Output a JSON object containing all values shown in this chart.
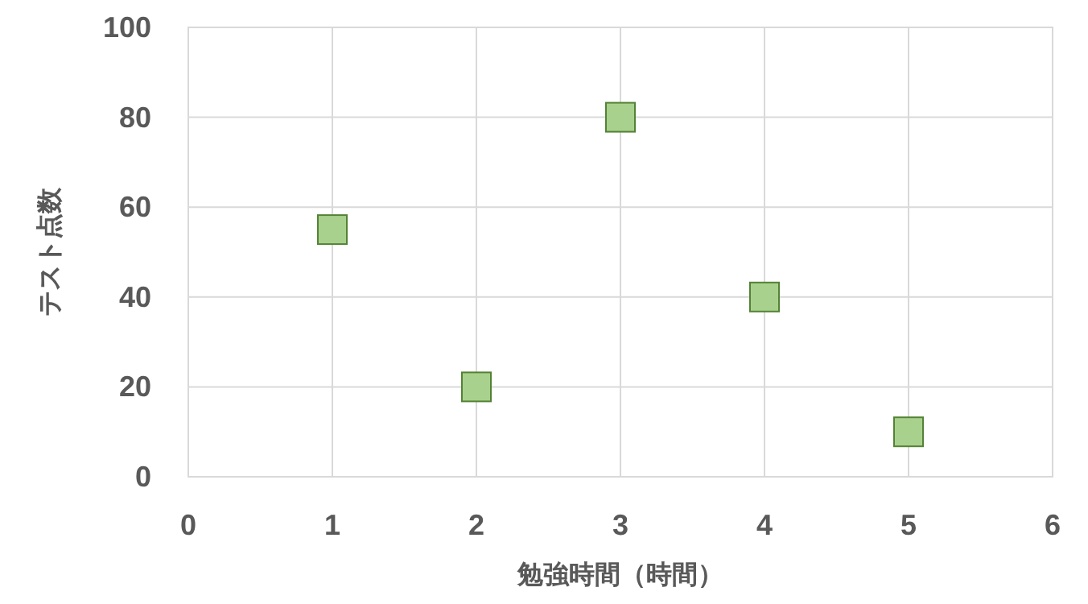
{
  "chart_data": {
    "type": "scatter",
    "xlabel": "勉強時間（時間）",
    "ylabel": "テスト点数",
    "x": [
      1,
      2,
      3,
      4,
      5
    ],
    "series": [
      {
        "type": "scatter",
        "color": "#a9d18e",
        "values": [
          55,
          20,
          80,
          40,
          10
        ]
      }
    ],
    "xlim": [
      0,
      6
    ],
    "xticks": [
      0,
      1,
      2,
      3,
      4,
      5,
      6
    ],
    "ylim": [
      0,
      100
    ],
    "yticks": [
      0,
      20,
      40,
      60,
      80,
      100
    ],
    "grid": true,
    "marker": "square"
  }
}
